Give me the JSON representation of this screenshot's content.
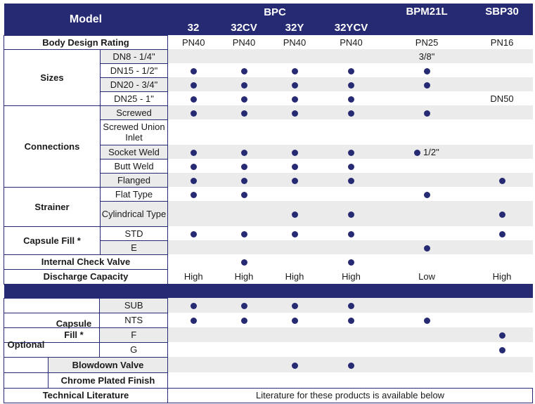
{
  "header": {
    "model": "Model",
    "groups": [
      "BPC",
      "BPM21L",
      "SBP30"
    ],
    "bpc_models": [
      "32",
      "32CV",
      "32Y",
      "32YCV"
    ]
  },
  "body_rating": {
    "label": "Body Design Rating",
    "values": [
      "PN40",
      "PN40",
      "PN40",
      "PN40",
      "PN25",
      "PN16"
    ]
  },
  "sizes": {
    "label": "Sizes",
    "rows": [
      {
        "name": "DN8 - 1/4\"",
        "bpm_text": "3/8\"",
        "sbp_text": ""
      },
      {
        "name": "DN15 - 1/2\"",
        "bpm_text": "",
        "sbp_text": ""
      },
      {
        "name": "DN20 - 3/4\"",
        "bpm_text": "",
        "sbp_text": ""
      },
      {
        "name": "DN25 - 1\"",
        "bpm_text": "",
        "sbp_text": "DN50"
      }
    ]
  },
  "connections": {
    "label": "Connections",
    "rows": [
      {
        "name": "Screwed",
        "bpm_text": ""
      },
      {
        "name": "Screwed Union Inlet",
        "bpm_text": ""
      },
      {
        "name": "Socket Weld",
        "bpm_text": "1/2\""
      },
      {
        "name": "Butt Weld",
        "bpm_text": ""
      },
      {
        "name": "Flanged",
        "bpm_text": ""
      }
    ]
  },
  "strainer": {
    "label": "Strainer",
    "rows": [
      {
        "name": "Flat Type"
      },
      {
        "name": "Cylindrical Type"
      }
    ]
  },
  "capsule_fill": {
    "label": "Capsule Fill *",
    "rows": [
      {
        "name": "STD"
      },
      {
        "name": "E"
      }
    ]
  },
  "check_valve": {
    "label": "Internal Check Valve"
  },
  "discharge": {
    "label": "Discharge Capacity",
    "values": [
      "High",
      "High",
      "High",
      "High",
      "Low",
      "High"
    ]
  },
  "optional": {
    "label": "Optional",
    "capsule_fill_label": "Capsule Fill *",
    "capsule_rows": [
      {
        "name": "SUB"
      },
      {
        "name": "NTS"
      },
      {
        "name": "F"
      },
      {
        "name": "G"
      }
    ],
    "blowdown_label": "Blowdown Valve",
    "chrome_label": "Chrome Plated Finish"
  },
  "tech_lit": {
    "label": "Technical Literature",
    "text": "Literature for these products is available below"
  },
  "colors": {
    "header_bg": "#262a72",
    "dot": "#262a72",
    "shade": "#ebebeb"
  }
}
